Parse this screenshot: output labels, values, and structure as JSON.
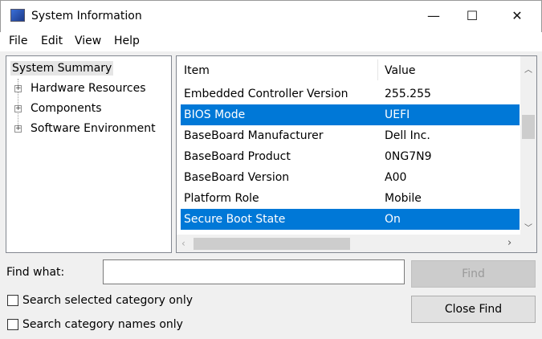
{
  "window": {
    "title": "System Information",
    "minimize": "—",
    "maximize": "☐",
    "close": "✕"
  },
  "menu": [
    "File",
    "Edit",
    "View",
    "Help"
  ],
  "tree": {
    "root": "System Summary",
    "children": [
      "Hardware Resources",
      "Components",
      "Software Environment"
    ]
  },
  "list": {
    "columns": [
      "Item",
      "Value"
    ],
    "rows": [
      {
        "item": "Embedded Controller Version",
        "value": "255.255",
        "selected": false
      },
      {
        "item": "BIOS Mode",
        "value": "UEFI",
        "selected": true
      },
      {
        "item": "BaseBoard Manufacturer",
        "value": "Dell Inc.",
        "selected": false
      },
      {
        "item": "BaseBoard Product",
        "value": "0NG7N9",
        "selected": false
      },
      {
        "item": "BaseBoard Version",
        "value": "A00",
        "selected": false
      },
      {
        "item": "Platform Role",
        "value": "Mobile",
        "selected": false
      },
      {
        "item": "Secure Boot State",
        "value": "On",
        "selected": true
      }
    ]
  },
  "find": {
    "label": "Find what:",
    "value": "",
    "find_button": "Find",
    "close_button": "Close Find",
    "opt1": "Search selected category only",
    "opt2": "Search category names only",
    "opt1_checked": false,
    "opt2_checked": false
  },
  "colors": {
    "selection": "#0078d7"
  }
}
